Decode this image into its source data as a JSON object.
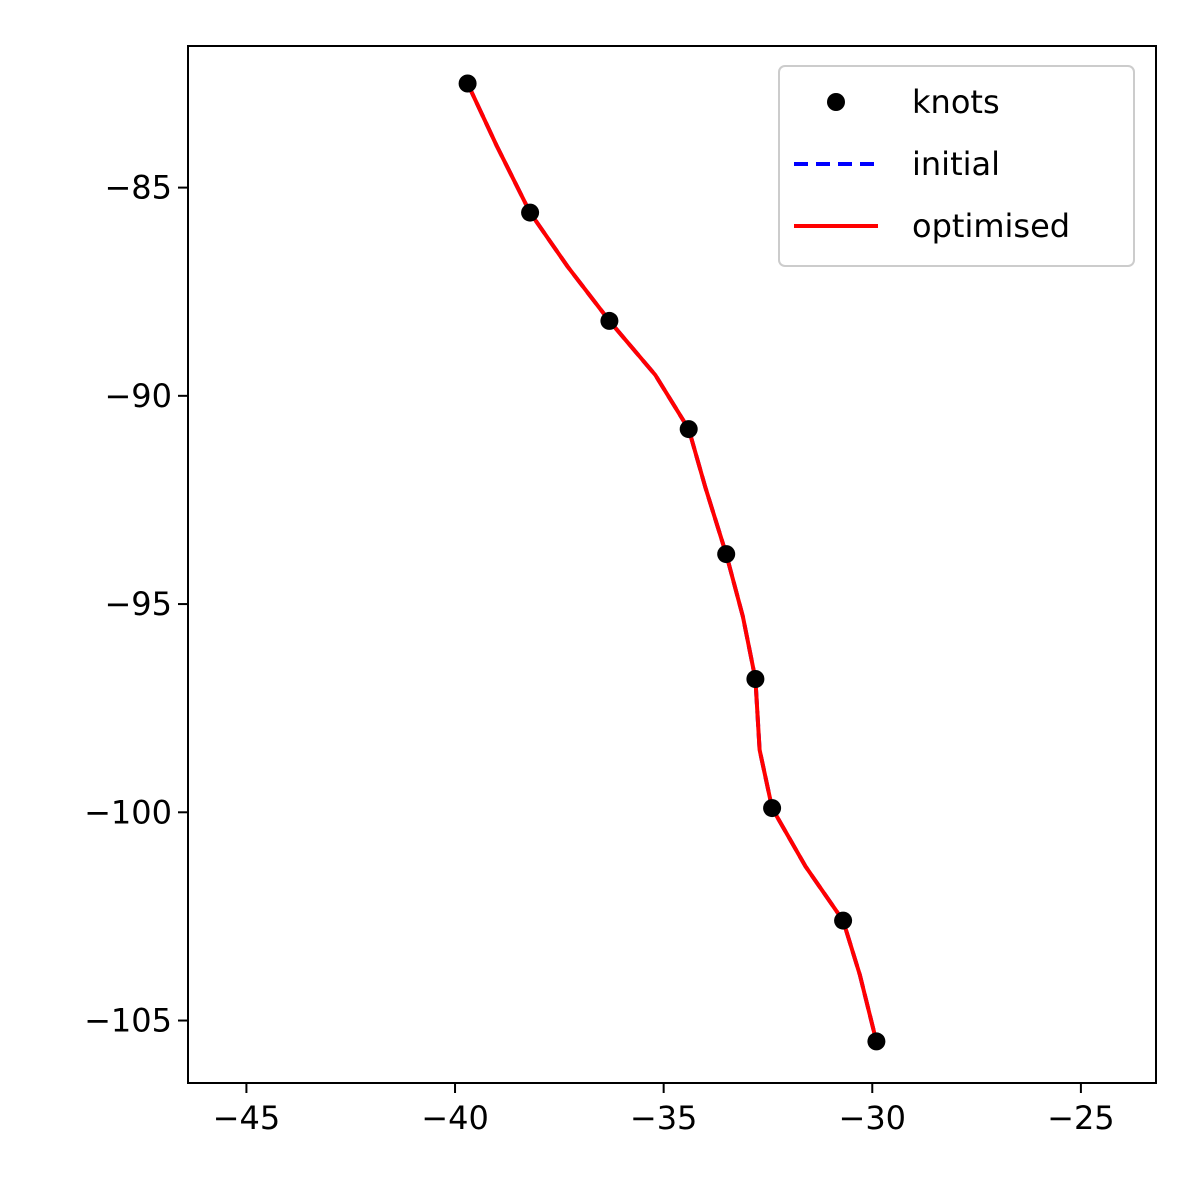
{
  "chart_data": {
    "type": "line",
    "title": "",
    "xlabel": "",
    "ylabel": "",
    "xlim": [
      -46.4,
      -23.2
    ],
    "ylim": [
      -106.5,
      -81.6
    ],
    "x_ticks": [
      -45,
      -40,
      -35,
      -30,
      -25
    ],
    "x_tick_labels": [
      "−45",
      "−40",
      "−35",
      "−30",
      "−25"
    ],
    "y_ticks": [
      -85,
      -90,
      -95,
      -100,
      -105
    ],
    "y_tick_labels": [
      "−85",
      "−90",
      "−95",
      "−100",
      "−105"
    ],
    "grid": false,
    "legend_position": "top-right",
    "series": [
      {
        "name": "knots",
        "kind": "scatter",
        "color": "#000000",
        "points": [
          [
            -39.7,
            -82.5
          ],
          [
            -38.2,
            -85.6
          ],
          [
            -36.3,
            -88.2
          ],
          [
            -34.4,
            -90.8
          ],
          [
            -33.5,
            -93.8
          ],
          [
            -32.8,
            -96.8
          ],
          [
            -32.4,
            -99.9
          ],
          [
            -30.7,
            -102.6
          ],
          [
            -29.9,
            -105.5
          ]
        ]
      },
      {
        "name": "initial",
        "kind": "line",
        "style": "dashed",
        "color": "#0000ff",
        "points": [
          [
            -39.7,
            -82.5
          ],
          [
            -39.0,
            -84.0
          ],
          [
            -38.2,
            -85.6
          ],
          [
            -37.3,
            -86.9
          ],
          [
            -36.3,
            -88.2
          ],
          [
            -35.2,
            -89.5
          ],
          [
            -34.4,
            -90.8
          ],
          [
            -34.0,
            -92.2
          ],
          [
            -33.5,
            -93.8
          ],
          [
            -33.1,
            -95.3
          ],
          [
            -32.8,
            -96.8
          ],
          [
            -32.7,
            -98.5
          ],
          [
            -32.4,
            -99.9
          ],
          [
            -31.6,
            -101.3
          ],
          [
            -30.7,
            -102.6
          ],
          [
            -30.3,
            -103.9
          ],
          [
            -29.9,
            -105.5
          ]
        ]
      },
      {
        "name": "optimised",
        "kind": "line",
        "style": "solid",
        "color": "#ff0000",
        "points": [
          [
            -39.7,
            -82.5
          ],
          [
            -39.0,
            -84.0
          ],
          [
            -38.2,
            -85.6
          ],
          [
            -37.3,
            -86.9
          ],
          [
            -36.3,
            -88.2
          ],
          [
            -35.2,
            -89.5
          ],
          [
            -34.4,
            -90.8
          ],
          [
            -34.0,
            -92.2
          ],
          [
            -33.5,
            -93.8
          ],
          [
            -33.1,
            -95.3
          ],
          [
            -32.8,
            -96.8
          ],
          [
            -32.7,
            -98.5
          ],
          [
            -32.4,
            -99.9
          ],
          [
            -31.6,
            -101.3
          ],
          [
            -30.7,
            -102.6
          ],
          [
            -30.3,
            -103.9
          ],
          [
            -29.9,
            -105.5
          ]
        ]
      }
    ],
    "legend": [
      {
        "label": "knots",
        "marker": "dot",
        "color": "#000000"
      },
      {
        "label": "initial",
        "marker": "dashed-line",
        "color": "#0000ff"
      },
      {
        "label": "optimised",
        "marker": "solid-line",
        "color": "#ff0000"
      }
    ]
  }
}
